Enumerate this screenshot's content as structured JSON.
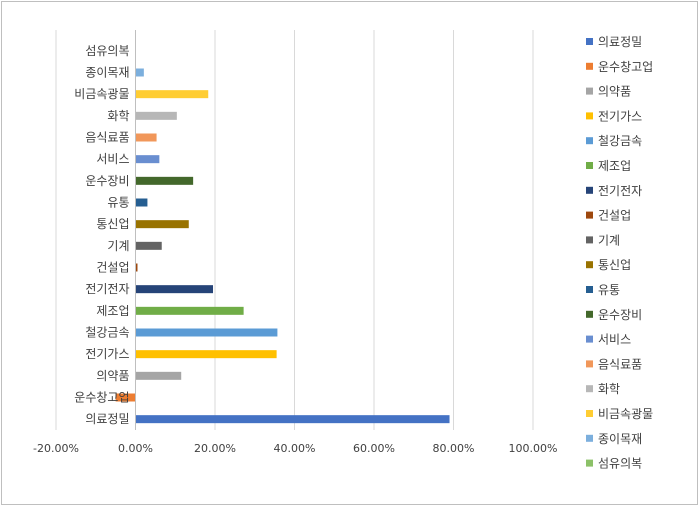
{
  "chart_data": {
    "type": "bar",
    "orientation": "horizontal",
    "title": "",
    "xlabel": "",
    "ylabel": "",
    "xlim": [
      -0.2,
      1.0
    ],
    "x_ticks": [
      -0.2,
      0.0,
      0.2,
      0.4,
      0.6,
      0.8,
      1.0
    ],
    "x_tick_labels": [
      "-20.00%",
      "0.00%",
      "20.00%",
      "40.00%",
      "60.00%",
      "80.00%",
      "100.00%"
    ],
    "grid": "vertical",
    "legend": "right",
    "categories": [
      "의료정밀",
      "운수창고업",
      "의약품",
      "전기가스",
      "철강금속",
      "제조업",
      "전기전자",
      "건설업",
      "기계",
      "통신업",
      "유통",
      "운수장비",
      "서비스",
      "음식료품",
      "화학",
      "비금속광물",
      "종이목재",
      "섬유의복"
    ],
    "values": [
      0.79,
      -0.05,
      0.115,
      0.355,
      0.357,
      0.272,
      0.195,
      0.005,
      0.066,
      0.134,
      0.03,
      0.145,
      0.06,
      0.053,
      0.104,
      0.183,
      0.021,
      0.0
    ],
    "colors": [
      "#4472C4",
      "#ED7D31",
      "#A5A5A5",
      "#FFC000",
      "#5B9BD5",
      "#70AD47",
      "#264478",
      "#9E480E",
      "#636363",
      "#997300",
      "#255E91",
      "#43682B",
      "#698ED0",
      "#F1975A",
      "#B7B7B7",
      "#FFCD33",
      "#7CAFDD",
      "#8CC168"
    ]
  }
}
